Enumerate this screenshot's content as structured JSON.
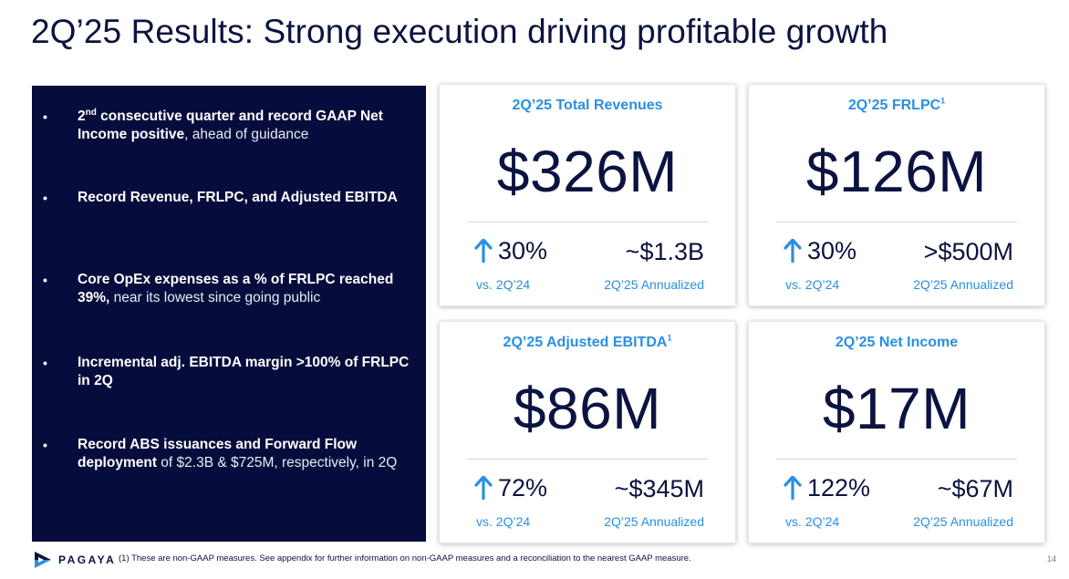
{
  "title": "2Q’25 Results: Strong execution driving profitable growth",
  "bullets": [
    {
      "bold_pre": "2",
      "sup": "nd",
      "bold": " consecutive quarter and record GAAP Net Income positive",
      "light": ", ahead of guidance"
    },
    {
      "bold_pre": "",
      "sup": "",
      "bold": "Record Revenue, FRLPC, and Adjusted EBITDA",
      "light": ""
    },
    {
      "bold_pre": "",
      "sup": "",
      "bold": "Core OpEx expenses as a % of FRLPC reached 39%,",
      "light": " near its lowest since going public"
    },
    {
      "bold_pre": "",
      "sup": "",
      "bold": "Incremental adj. EBITDA margin >100% of FRLPC in 2Q",
      "light": ""
    },
    {
      "bold_pre": "",
      "sup": "",
      "bold": "Record ABS issuances and Forward Flow deployment",
      "light": " of $2.3B & $725M, respectively, in 2Q"
    }
  ],
  "bullet_symbol": "•",
  "cards": [
    {
      "label": "2Q’25 Total Revenues",
      "label_sup": "",
      "value": "$326M",
      "growth": "30%",
      "growth_label": "vs. 2Q’24",
      "annualized": "~$1.3B",
      "annualized_label": "2Q’25 Annualized"
    },
    {
      "label": "2Q’25 FRLPC",
      "label_sup": "1",
      "value": "$126M",
      "growth": "30%",
      "growth_label": "vs. 2Q’24",
      "annualized": ">$500M",
      "annualized_label": "2Q’25 Annualized"
    },
    {
      "label": "2Q’25 Adjusted EBITDA",
      "label_sup": "1",
      "value": "$86M",
      "growth": "72%",
      "growth_label": "vs. 2Q’24",
      "annualized": "~$345M",
      "annualized_label": "2Q’25 Annualized"
    },
    {
      "label": "2Q’25 Net Income",
      "label_sup": "",
      "value": "$17M",
      "growth": "122%",
      "growth_label": "vs. 2Q’24",
      "annualized": "~$67M",
      "annualized_label": "2Q’25 Annualized"
    }
  ],
  "footer": {
    "logo_text": "PAGAYA",
    "footnote": "(1) These are non-GAAP measures. See appendix for further information on non-GAAP measures and a reconciliation to the nearest GAAP measure.",
    "page_number": "14"
  },
  "colors": {
    "navy": "#060d3c",
    "accent_blue": "#2a8fe3",
    "text_dark": "#0b1340"
  },
  "icons": {
    "growth_arrow": "arrow-up-icon",
    "logo": "pagaya-logo-icon"
  }
}
